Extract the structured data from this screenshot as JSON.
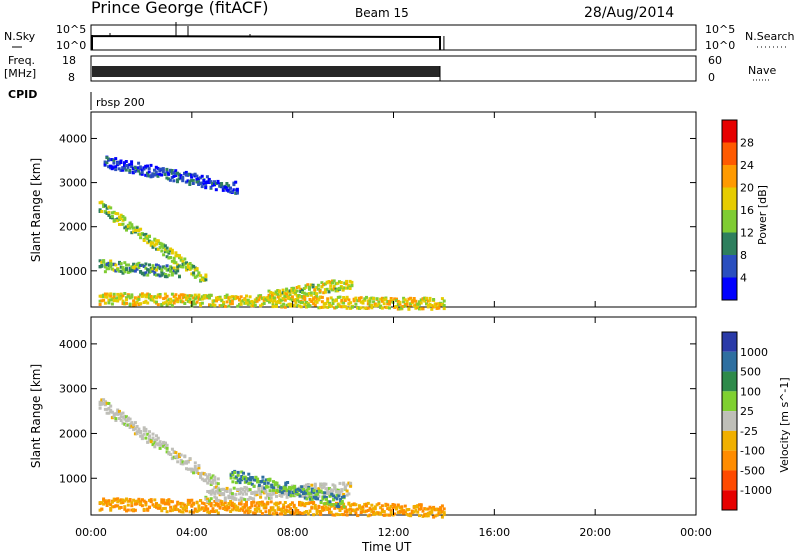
{
  "header": {
    "station": "Prince George (fitACF)",
    "beam": "Beam 15",
    "date": "28/Aug/2014"
  },
  "strips": {
    "nsky_label": "N.Sky",
    "nsky_ticks": [
      "10^5",
      "10^0"
    ],
    "nsearch_label": "N.Search",
    "nsearch_ticks": [
      "10^5",
      "10^0"
    ],
    "freq_label_line1": "Freq.",
    "freq_label_line2": "[MHz]",
    "freq_ticks": [
      "18",
      "8"
    ],
    "nave_label": "Nave",
    "nave_ticks": [
      "60",
      "0"
    ],
    "cpid_label": "CPID",
    "cpid_value": "rbsp 200"
  },
  "colors": {
    "power_scale": [
      "#0000ff",
      "#2a4fbf",
      "#2e7f5e",
      "#7fcc33",
      "#e6cc00",
      "#ff9a00",
      "#ff5a00",
      "#e60000"
    ],
    "velocity_scale": [
      "#2a3aa8",
      "#2e6fa0",
      "#2e8a4a",
      "#7fd030",
      "#bfbfb8",
      "#f0b000",
      "#ff8c00",
      "#ff4a00",
      "#e60000"
    ]
  },
  "chart_data": [
    {
      "type": "heatmap",
      "title": "",
      "xlabel": "Time UT",
      "ylabel": "Slant Range [km]",
      "xlim": [
        "00:00",
        "24:00"
      ],
      "ylim": [
        180,
        4600
      ],
      "x_ticks": [
        "00:00",
        "04:00",
        "08:00",
        "12:00",
        "16:00",
        "20:00",
        "00:00"
      ],
      "y_ticks": [
        "1000",
        "2000",
        "3000",
        "4000"
      ],
      "colorbar_label": "Power [dB]",
      "colorbar_ticks": [
        "4",
        "8",
        "12",
        "16",
        "20",
        "24",
        "28"
      ],
      "colorbar_range": [
        0,
        32
      ],
      "data_end_hour": 14.0,
      "features": [
        {
          "name": "near-range echo band",
          "start_h": 0.3,
          "end_h": 14.0,
          "range_km_start": 400,
          "range_km_end": 280,
          "power_db": 18
        },
        {
          "name": "rising arc",
          "start_h": 7.0,
          "end_h": 10.3,
          "range_km_start": 450,
          "range_km_end": 750,
          "power_db": 16
        },
        {
          "name": "descending ionospheric band",
          "start_h": 0.3,
          "end_h": 4.5,
          "range_km_start": 2500,
          "range_km_end": 850,
          "power_db": 14
        },
        {
          "name": "mid-range band",
          "start_h": 0.3,
          "end_h": 3.5,
          "range_km_start": 1150,
          "range_km_end": 1000,
          "power_db": 12
        },
        {
          "name": "far-range scatter",
          "start_h": 0.5,
          "end_h": 5.8,
          "range_km_start": 3500,
          "range_km_end": 2900,
          "power_db": 5
        }
      ]
    },
    {
      "type": "heatmap",
      "title": "",
      "xlabel": "Time UT",
      "ylabel": "Slant Range [km]",
      "xlim": [
        "00:00",
        "24:00"
      ],
      "ylim": [
        180,
        4600
      ],
      "x_ticks": [
        "00:00",
        "04:00",
        "08:00",
        "12:00",
        "16:00",
        "20:00",
        "00:00"
      ],
      "y_ticks": [
        "1000",
        "2000",
        "3000",
        "4000"
      ],
      "colorbar_label": "Velocity [m s^-1]",
      "colorbar_ticks": [
        "1000",
        "500",
        "100",
        "25",
        "-25",
        "-100",
        "-500",
        "-1000"
      ],
      "data_end_hour": 14.0,
      "features": [
        {
          "name": "near-range band",
          "start_h": 0.3,
          "end_h": 14.0,
          "range_km_start": 450,
          "range_km_end": 300,
          "velocity_ms": -100
        },
        {
          "name": "ground scatter arc",
          "start_h": 0.3,
          "end_h": 5.0,
          "range_km_start": 2700,
          "range_km_end": 900,
          "velocity_ms": 0
        },
        {
          "name": "mid arc",
          "start_h": 4.5,
          "end_h": 10.3,
          "range_km_start": 650,
          "range_km_end": 800,
          "velocity_ms": 0
        },
        {
          "name": "scattered positive flow",
          "start_h": 5.5,
          "end_h": 10.0,
          "range_km_start": 1100,
          "range_km_end": 500,
          "velocity_ms": 100
        }
      ]
    }
  ]
}
